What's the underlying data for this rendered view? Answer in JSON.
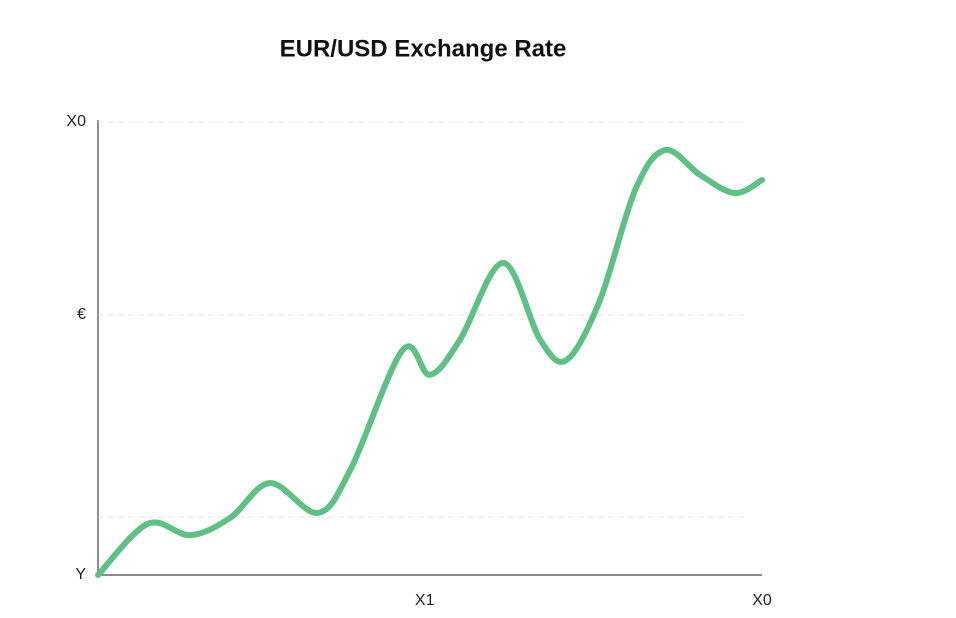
{
  "chart_data": {
    "type": "line",
    "title": "EUR/USD Exchange Rate",
    "x": [
      0,
      7.5,
      13.9,
      19.9,
      25.9,
      33.1,
      38.0,
      45.9,
      50.0,
      54.5,
      61.0,
      66.6,
      70.6,
      75.6,
      80.9,
      85.4,
      90.7,
      95.9,
      100
    ],
    "series": [
      {
        "color": "#5fbf85",
        "values": [
          0,
          11.3,
          8.8,
          12.6,
          20.3,
          13.7,
          23.2,
          49.7,
          44.2,
          51.9,
          68.9,
          51.9,
          47.5,
          60.7,
          85.0,
          93.8,
          88.3,
          84.3,
          87.2
        ]
      }
    ],
    "xlim": [
      0,
      100
    ],
    "xticks": [
      {
        "value": 49.2,
        "label": "X1"
      },
      {
        "value": 100,
        "label": "X0"
      }
    ],
    "ylim": [
      0,
      100
    ],
    "yticks": [
      {
        "value": 100,
        "label": "X0"
      },
      {
        "value": 57.4,
        "label": "€"
      },
      {
        "value": 0,
        "label": "Y"
      }
    ],
    "ygrid": [
      100,
      57.4,
      12.8
    ],
    "grid": true
  }
}
